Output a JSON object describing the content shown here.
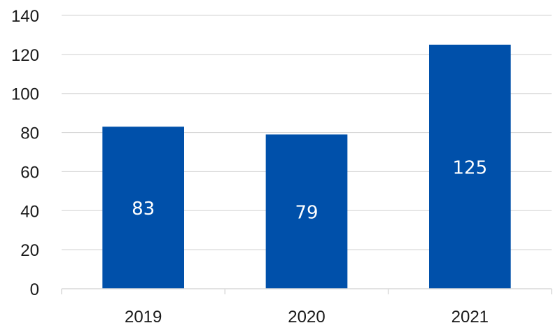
{
  "chart_data": {
    "type": "bar",
    "categories": [
      "2019",
      "2020",
      "2021"
    ],
    "values": [
      83,
      79,
      125
    ],
    "data_labels": [
      "83",
      "79",
      "125"
    ],
    "title": "",
    "xlabel": "",
    "ylabel": "",
    "ylim": [
      0,
      140
    ],
    "yticks": [
      "0",
      "20",
      "40",
      "60",
      "80",
      "100",
      "120",
      "140"
    ],
    "grid": true,
    "legend": "none",
    "bar_color": "#0050AA",
    "grid_color": "#D9D9D9"
  }
}
